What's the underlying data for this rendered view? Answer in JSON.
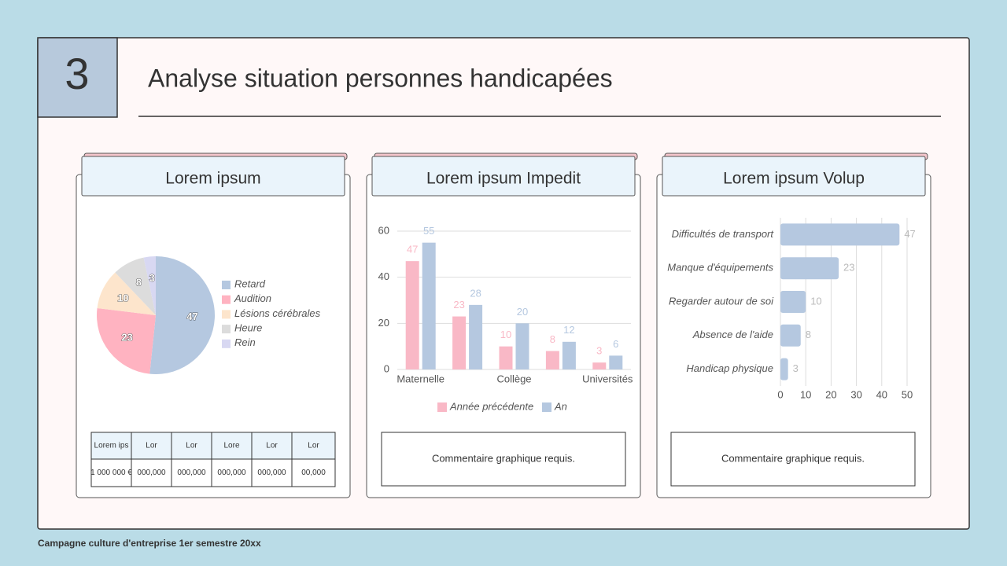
{
  "slide": {
    "number": "3",
    "title": "Analyse situation personnes handicapées",
    "footer": "Campagne culture d'entreprise 1er semestre 20xx"
  },
  "panels": [
    {
      "title": "Lorem ipsum"
    },
    {
      "title": "Lorem ipsum Impedit"
    },
    {
      "title": "Lorem ipsum Volup"
    }
  ],
  "table": {
    "rows": [
      [
        "Lorem ips",
        "Lor",
        "Lor",
        "Lore",
        "Lor",
        "Lor"
      ],
      [
        "1 000 000 €",
        "000,000",
        "000,000",
        "000,000",
        "000,000",
        "00,000"
      ]
    ]
  },
  "comments": [
    "Commentaire graphique requis.",
    "Commentaire graphique requis."
  ],
  "chart_data": [
    {
      "type": "pie",
      "categories": [
        "Retard",
        "Audition",
        "Lésions cérébrales",
        "Heure",
        "Rein"
      ],
      "values": [
        47,
        23,
        10,
        8,
        3
      ],
      "colors": [
        "#b5c8e0",
        "#ffb3c1",
        "#fde5cc",
        "#dcdcdc",
        "#d8d8f2"
      ],
      "legend": "right"
    },
    {
      "type": "bar",
      "categories": [
        "Maternelle",
        null,
        "Collège",
        null,
        "Universités"
      ],
      "series": [
        {
          "name": "Année précédente",
          "color": "#f9b8c6",
          "values": [
            47,
            23,
            10,
            8,
            3
          ]
        },
        {
          "name": "An",
          "color": "#b5c8e0",
          "values": [
            55,
            28,
            20,
            12,
            6
          ]
        }
      ],
      "ylim": [
        0,
        60
      ],
      "yticks": [
        0,
        20,
        40,
        60
      ],
      "grid": true,
      "legend": "bottom"
    },
    {
      "type": "hbar",
      "categories": [
        "Difficultés de transport",
        "Manque d'équipements",
        "Regarder autour de soi",
        "Absence de l'aide",
        "Handicap physique"
      ],
      "values": [
        47,
        23,
        10,
        8,
        3
      ],
      "color": "#b5c8e0",
      "xlim": [
        0,
        50
      ],
      "xticks": [
        0,
        10,
        20,
        30,
        40,
        50
      ],
      "grid": true
    }
  ]
}
